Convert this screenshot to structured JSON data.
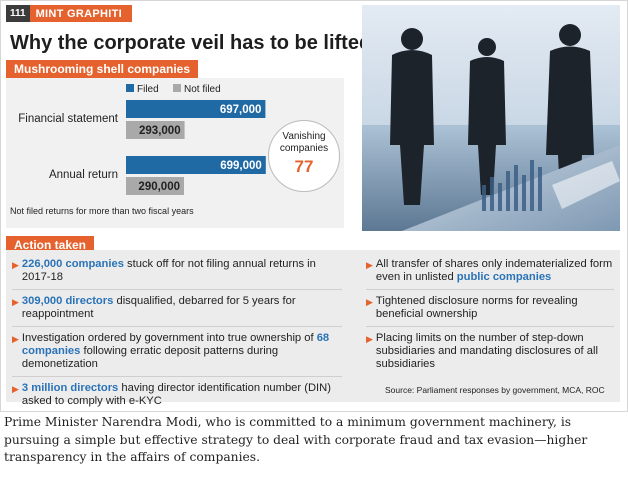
{
  "brand": {
    "number": "111",
    "label": "MINT GRAPHITI"
  },
  "headline": "Why the corporate veil has to be lifted",
  "chart_section": "Mushrooming shell companies",
  "chart_data": {
    "type": "bar",
    "categories": [
      "Financial statement",
      "Annual return"
    ],
    "series": [
      {
        "name": "Filed",
        "values": [
          697000,
          699000
        ],
        "labels": [
          "697,000",
          "699,000"
        ],
        "color": "#1f6aa5"
      },
      {
        "name": "Not filed",
        "values": [
          293000,
          290000
        ],
        "labels": [
          "293,000",
          "290,000"
        ],
        "color": "#a9a9a9"
      }
    ],
    "orientation": "horizontal",
    "legend_placement": "top",
    "grid": false
  },
  "footnote": "Not filed returns for more than two fiscal years",
  "vanishing": {
    "label_line1": "Vanishing",
    "label_line2": "companies",
    "value": "77"
  },
  "actions_section": "Action taken",
  "left_items": [
    {
      "hl": "226,000 companies",
      "rest": " stuck off for not filing annual returns in 2017-18"
    },
    {
      "hl": "309,000 directors",
      "rest": " disqualified, debarred for 5 years for reappointment"
    },
    {
      "pre": "Investigation ordered by government into true ownership of ",
      "hl": "68 companies",
      "rest": " following erratic deposit patterns during demonetization"
    },
    {
      "hl": "3 million directors",
      "rest": " having director identification number (DIN) asked to comply with e-KYC"
    }
  ],
  "right_items": [
    {
      "pre": "All transfer of shares only indematerialized form even in unlisted ",
      "hl": "public companies",
      "rest": ""
    },
    {
      "pre": "Tightened disclosure norms for revealing beneficial ownership",
      "hl": "",
      "rest": ""
    },
    {
      "pre": "Placing limits on the number of step-down subsidiaries and mandating disclosures of all subsidiaries",
      "hl": "",
      "rest": ""
    }
  ],
  "source": "Source: Parliament responses by government, MCA, ROC",
  "caption": "Prime Minister Narendra Modi, who is committed to a minimum government machinery, is pursuing a simple but effective strategy to deal with corporate fraud and tax evasion—higher transparency in the affairs of companies.",
  "colors": {
    "accent": "#e5622e",
    "filed": "#1f6aa5",
    "not_filed": "#a9a9a9",
    "highlight": "#2a73b8"
  }
}
